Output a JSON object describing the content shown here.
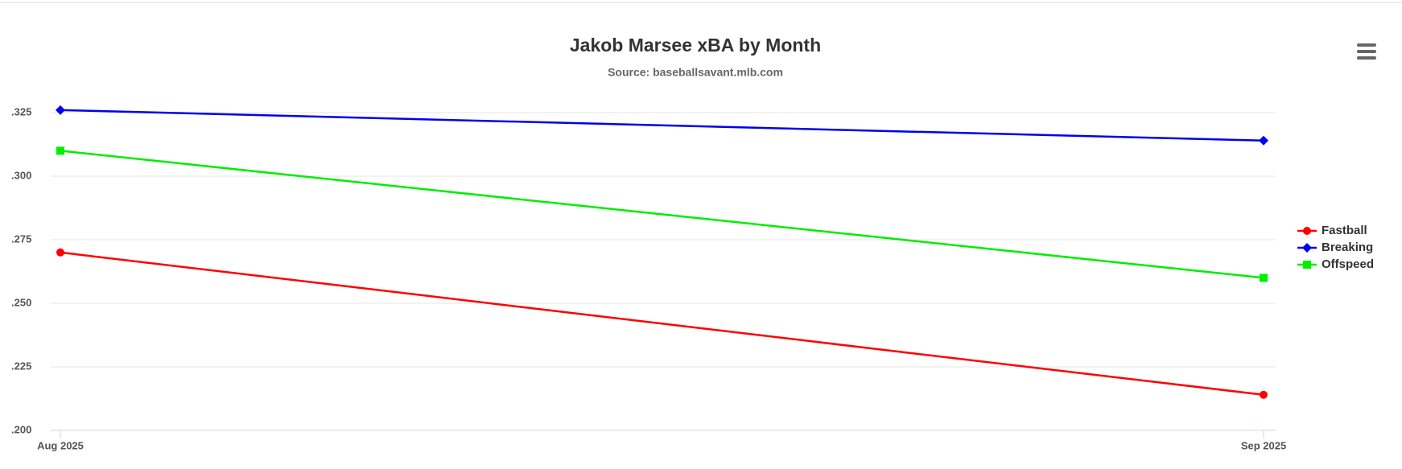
{
  "chart_data": {
    "type": "line",
    "title": "Jakob Marsee xBA by Month",
    "subtitle": "Source: baseballsavant.mlb.com",
    "categories": [
      "Aug 2025",
      "Sep 2025"
    ],
    "series": [
      {
        "name": "Fastball",
        "color": "#ff0000",
        "symbol": "circle",
        "values": [
          0.27,
          0.214
        ]
      },
      {
        "name": "Breaking",
        "color": "#0000ee",
        "symbol": "diamond",
        "values": [
          0.326,
          0.314
        ]
      },
      {
        "name": "Offspeed",
        "color": "#00ee00",
        "symbol": "square",
        "values": [
          0.31,
          0.26
        ]
      }
    ],
    "ylim": [
      0.2,
      0.33
    ],
    "yticks": [
      {
        "value": 0.2,
        "label": ".200"
      },
      {
        "value": 0.225,
        "label": ".225"
      },
      {
        "value": 0.25,
        "label": ".250"
      },
      {
        "value": 0.275,
        "label": ".275"
      },
      {
        "value": 0.3,
        "label": ".300"
      },
      {
        "value": 0.325,
        "label": ".325"
      }
    ],
    "grid": true,
    "legend": "right"
  }
}
